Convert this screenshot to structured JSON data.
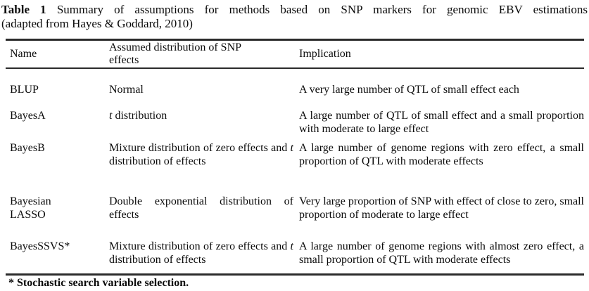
{
  "caption": {
    "label": "Table 1",
    "title": "Summary of assumptions for methods based on SNP markers for genomic EBV estimations",
    "source": "(adapted from Hayes & Goddard, 2010)"
  },
  "table": {
    "headers": [
      "Name",
      "Assumed distribution of SNP effects",
      "Implication"
    ],
    "rows": [
      {
        "name": "BLUP",
        "distribution": [
          {
            "t": "Normal"
          }
        ],
        "implication": "A very large number of QTL of small effect each"
      },
      {
        "name": "BayesA",
        "distribution": [
          {
            "t": "t",
            "i": true
          },
          {
            "t": " distribution"
          }
        ],
        "implication": "A large number of QTL of small effect and a small proportion with moderate to large effect"
      },
      {
        "name": "BayesB",
        "distribution": [
          {
            "t": "Mixture distribution of zero effects and "
          },
          {
            "t": "t",
            "i": true
          },
          {
            "t": " distribution of effects"
          }
        ],
        "implication": "A large number of genome regions with zero effect, a small proportion of QTL with moderate effects"
      },
      {
        "name": "Bayesian LASSO",
        "distribution": [
          {
            "t": "Double exponential distribution of effects"
          }
        ],
        "implication": "Very large proportion of SNP with effect of close to zero, small proportion of moderate to large effect"
      },
      {
        "name": "BayesSSVS*",
        "distribution": [
          {
            "t": "Mixture distribution of zero effects and "
          },
          {
            "t": "t",
            "i": true
          },
          {
            "t": " distribution of effects"
          }
        ],
        "implication": "A large number of genome regions with almost zero effect, a small proportion of QTL with moderate effects"
      }
    ]
  },
  "footnote": "* Stochastic search variable selection."
}
